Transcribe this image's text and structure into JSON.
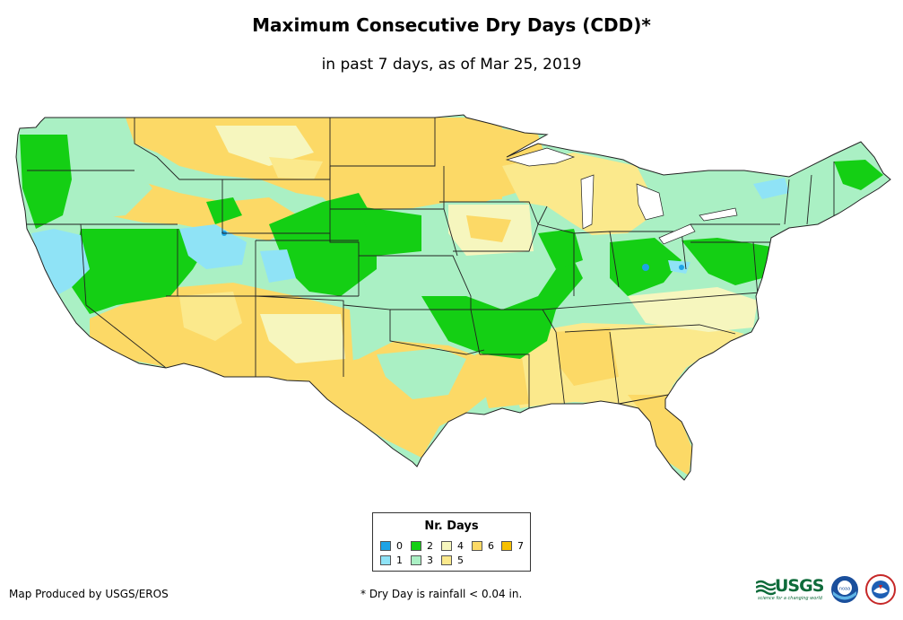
{
  "title": "Maximum Consecutive Dry Days (CDD)*",
  "subtitle": "in past 7 days, as of Mar 25, 2019",
  "legend": {
    "title": "Nr. Days",
    "items": [
      {
        "label": "0",
        "color": "#1ea3e6"
      },
      {
        "label": "1",
        "color": "#8fe3f6"
      },
      {
        "label": "2",
        "color": "#14cf14"
      },
      {
        "label": "3",
        "color": "#aaf0c4"
      },
      {
        "label": "4",
        "color": "#f6f6be"
      },
      {
        "label": "5",
        "color": "#fbe98c"
      },
      {
        "label": "6",
        "color": "#fcd966"
      },
      {
        "label": "7",
        "color": "#f6c000"
      }
    ]
  },
  "credit": "Map Produced by USGS/EROS",
  "footnote": "* Dry Day is rainfall < 0.04 in.",
  "logos": {
    "usgs": "USGS",
    "usgs_tagline": "science for a changing world",
    "noaa": "noaa"
  },
  "colors": {
    "state_border": "#222222"
  }
}
